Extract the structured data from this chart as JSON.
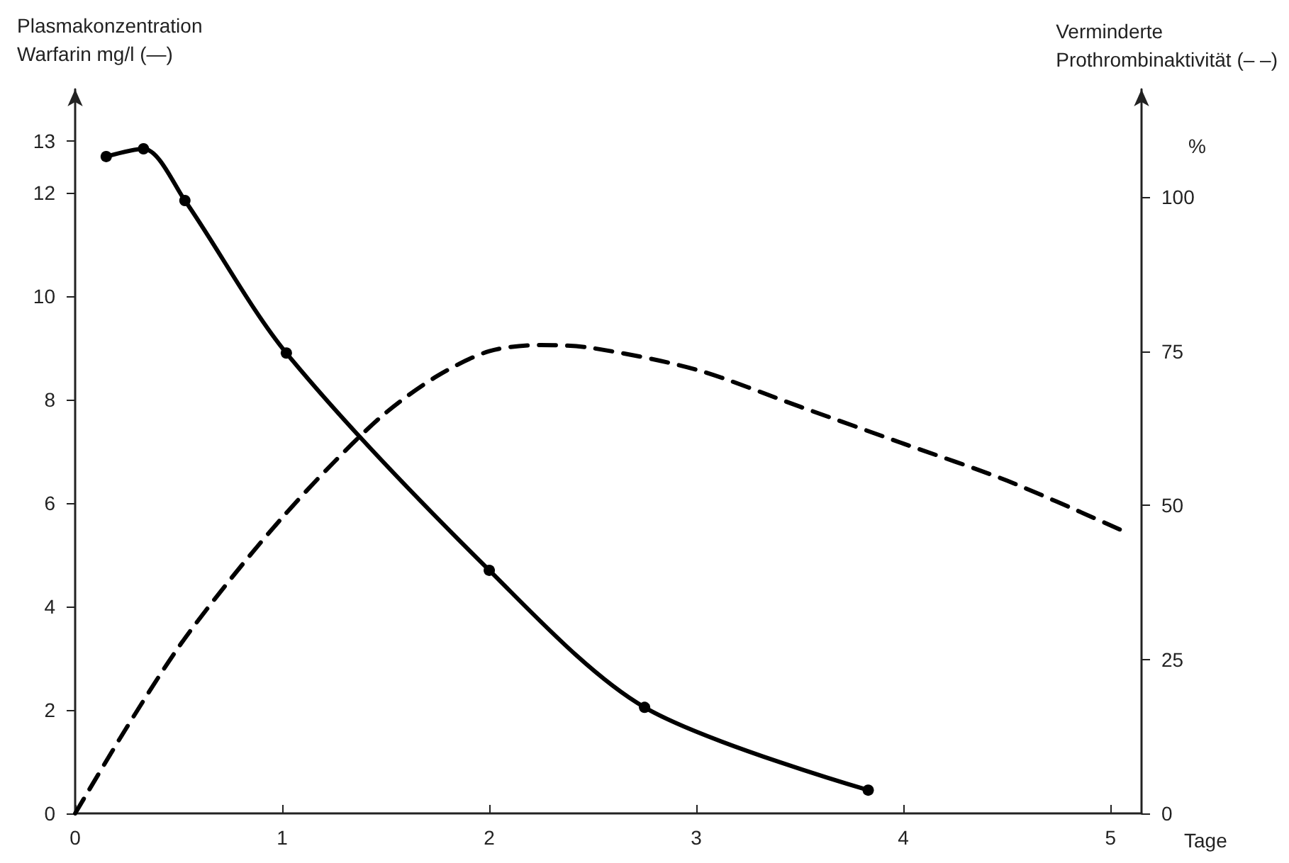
{
  "chart_data": {
    "type": "line",
    "ylabel": "Plasmakonzentration\nWarfarin mg/l (—)",
    "y2label": "Verminderte\nProthrombinaktivität (– –)",
    "xlabel": "Tage",
    "annotations": [
      "%"
    ],
    "xlim": [
      0,
      5.15
    ],
    "xticks": [
      0,
      1,
      2,
      3,
      4,
      5
    ],
    "ylim": [
      0,
      14
    ],
    "yticks": [
      0,
      2,
      4,
      6,
      8,
      10,
      12,
      13
    ],
    "y2lim": [
      0,
      117.5
    ],
    "y2ticks": [
      0,
      25,
      50,
      75,
      100
    ],
    "series": [
      {
        "color": "#000000",
        "marker": "circle",
        "line_style": "solid",
        "x": [
          0.15,
          0.33,
          0.53,
          1.02,
          2.0,
          2.75,
          3.83
        ],
        "values": [
          12.7,
          12.85,
          11.85,
          8.9,
          4.7,
          2.05,
          0.45
        ]
      },
      {
        "color": "#000000",
        "marker": "none",
        "line_style": "dashed",
        "axis": "y2",
        "x": [
          0,
          0.25,
          0.5,
          0.75,
          1,
          1.25,
          1.5,
          1.75,
          2,
          2.25,
          2.5,
          3,
          3.5,
          4,
          4.5,
          5.05
        ],
        "values": [
          0,
          14,
          27,
          38,
          48,
          57,
          65,
          71,
          75,
          76,
          75.5,
          72,
          66,
          60,
          54,
          46
        ]
      }
    ]
  }
}
